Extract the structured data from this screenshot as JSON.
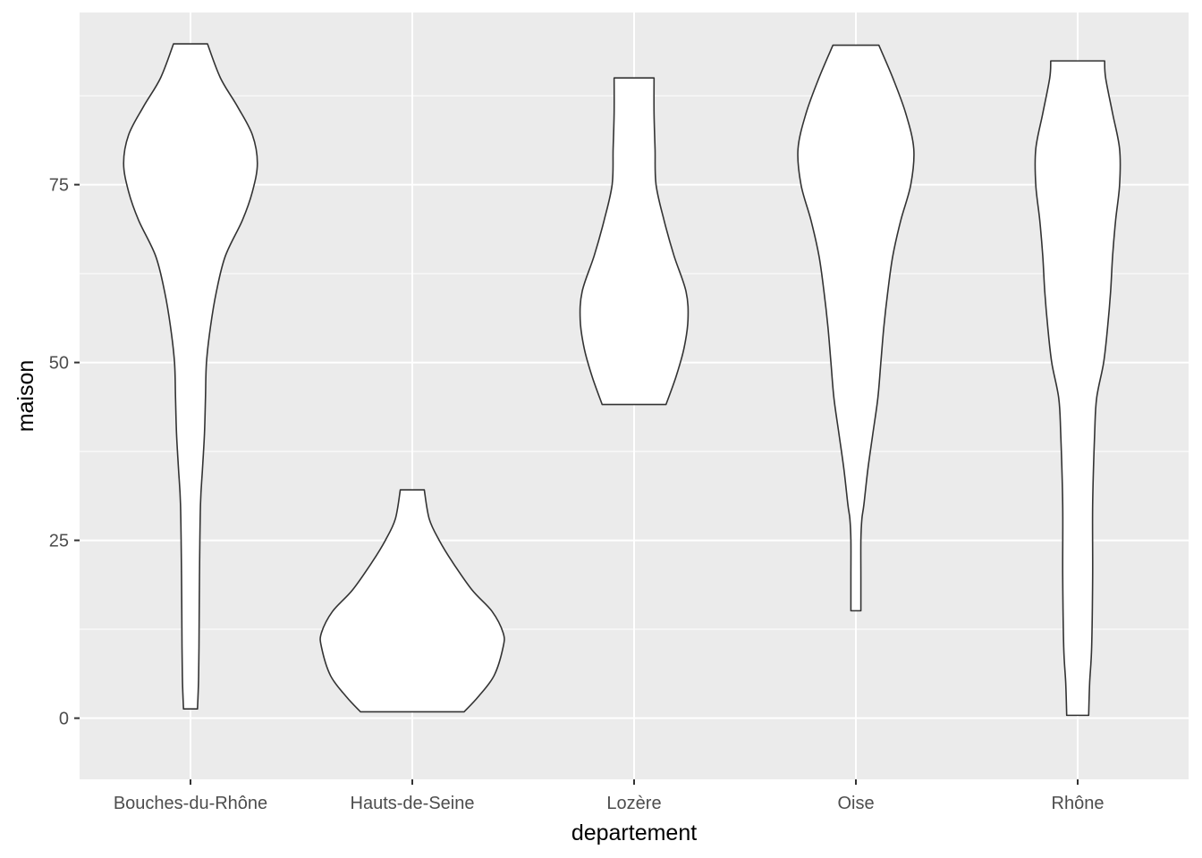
{
  "chart_data": {
    "type": "violin",
    "title": "",
    "xlabel": "departement",
    "ylabel": "maison",
    "categories": [
      "Bouches-du-Rhône",
      "Hauts-de-Seine",
      "Lozère",
      "Oise",
      "Rhône"
    ],
    "ylim": [
      -8.6,
      99.2
    ],
    "yticks": [
      0,
      25,
      50,
      75
    ],
    "grid": true,
    "legend": "none",
    "colors": {
      "panel": "#ebebeb",
      "grid": "#ffffff",
      "fill": "#ffffff",
      "outline": "#333333",
      "tick_text": "#4d4d4d",
      "tick_mark": "#333333"
    },
    "violins": [
      {
        "category": "Bouches-du-Rhône",
        "min": 1.3,
        "max": 94.8,
        "profile": [
          [
            1.3,
            0.07
          ],
          [
            5,
            0.08
          ],
          [
            10,
            0.085
          ],
          [
            20,
            0.09
          ],
          [
            30,
            0.1
          ],
          [
            35,
            0.12
          ],
          [
            40,
            0.14
          ],
          [
            45,
            0.15
          ],
          [
            50,
            0.16
          ],
          [
            55,
            0.2
          ],
          [
            60,
            0.26
          ],
          [
            65,
            0.35
          ],
          [
            70,
            0.52
          ],
          [
            74,
            0.62
          ],
          [
            78,
            0.67
          ],
          [
            82,
            0.62
          ],
          [
            86,
            0.47
          ],
          [
            90,
            0.3
          ],
          [
            94.8,
            0.17
          ]
        ]
      },
      {
        "category": "Hauts-de-Seine",
        "min": 0.9,
        "max": 32.1,
        "profile": [
          [
            0.9,
            0.52
          ],
          [
            3,
            0.66
          ],
          [
            6,
            0.82
          ],
          [
            10,
            0.91
          ],
          [
            12,
            0.91
          ],
          [
            15,
            0.8
          ],
          [
            18,
            0.6
          ],
          [
            22,
            0.4
          ],
          [
            25,
            0.27
          ],
          [
            28,
            0.17
          ],
          [
            32.1,
            0.12
          ]
        ]
      },
      {
        "category": "Lozère",
        "min": 44.1,
        "max": 90,
        "profile": [
          [
            44.1,
            0.32
          ],
          [
            48,
            0.42
          ],
          [
            52,
            0.5
          ],
          [
            56,
            0.54
          ],
          [
            60,
            0.52
          ],
          [
            65,
            0.4
          ],
          [
            70,
            0.3
          ],
          [
            75,
            0.22
          ],
          [
            80,
            0.21
          ],
          [
            85,
            0.2
          ],
          [
            90,
            0.2
          ]
        ]
      },
      {
        "category": "Oise",
        "min": 15.1,
        "max": 94.6,
        "profile": [
          [
            15.1,
            0.05
          ],
          [
            20,
            0.05
          ],
          [
            25,
            0.05
          ],
          [
            28,
            0.06
          ],
          [
            30,
            0.08
          ],
          [
            35,
            0.12
          ],
          [
            40,
            0.17
          ],
          [
            45,
            0.22
          ],
          [
            50,
            0.25
          ],
          [
            55,
            0.28
          ],
          [
            60,
            0.32
          ],
          [
            65,
            0.37
          ],
          [
            70,
            0.45
          ],
          [
            75,
            0.55
          ],
          [
            80,
            0.58
          ],
          [
            85,
            0.5
          ],
          [
            90,
            0.37
          ],
          [
            94.6,
            0.23
          ]
        ]
      },
      {
        "category": "Rhône",
        "min": 0.4,
        "max": 92.4,
        "profile": [
          [
            0.4,
            0.11
          ],
          [
            5,
            0.12
          ],
          [
            10,
            0.14
          ],
          [
            20,
            0.15
          ],
          [
            30,
            0.15
          ],
          [
            40,
            0.17
          ],
          [
            45,
            0.19
          ],
          [
            50,
            0.26
          ],
          [
            55,
            0.3
          ],
          [
            60,
            0.33
          ],
          [
            65,
            0.35
          ],
          [
            70,
            0.38
          ],
          [
            75,
            0.42
          ],
          [
            80,
            0.42
          ],
          [
            85,
            0.35
          ],
          [
            90,
            0.28
          ],
          [
            92.4,
            0.27
          ]
        ]
      }
    ]
  }
}
